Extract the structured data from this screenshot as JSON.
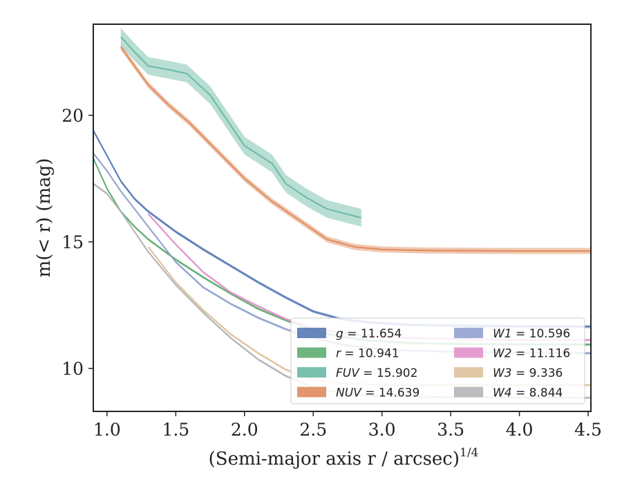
{
  "chart_data": {
    "type": "line",
    "xlabel": "(Semi-major axis r / arcsec)",
    "xlabel_superscript": "1/4",
    "ylabel": "m(< r) (mag)",
    "xlim": [
      0.9,
      4.52
    ],
    "ylim": [
      23.6,
      8.3
    ],
    "y_inverted": true,
    "grid": false,
    "legend_position": "lower-right",
    "legend_columns": 2,
    "x_ticks": [
      1.0,
      1.5,
      2.0,
      2.5,
      3.0,
      3.5,
      4.0,
      4.5
    ],
    "x_tick_labels": [
      "1.0",
      "1.5",
      "2.0",
      "2.5",
      "3.0",
      "3.5",
      "4.0",
      "4.5"
    ],
    "y_ticks": [
      10,
      15,
      20
    ],
    "y_tick_labels": [
      "10",
      "15",
      "20"
    ],
    "series": [
      {
        "name": "g",
        "legend_value": "11.654",
        "color": "#4c72b0",
        "band": 0.06,
        "x": [
          0.9,
          1.0,
          1.1,
          1.2,
          1.3,
          1.5,
          1.7,
          1.9,
          2.1,
          2.3,
          2.5,
          2.7,
          2.9,
          3.2,
          3.6,
          4.0,
          4.52
        ],
        "y": [
          19.4,
          18.4,
          17.4,
          16.7,
          16.2,
          15.4,
          14.7,
          14.05,
          13.4,
          12.8,
          12.25,
          11.95,
          11.82,
          11.72,
          11.68,
          11.66,
          11.65
        ]
      },
      {
        "name": "r",
        "legend_value": "10.941",
        "color": "#55a868",
        "band": 0.05,
        "x": [
          0.9,
          1.0,
          1.1,
          1.2,
          1.3,
          1.5,
          1.7,
          1.9,
          2.1,
          2.3,
          2.5,
          2.7,
          2.9,
          3.2,
          3.6,
          4.0,
          4.52
        ],
        "y": [
          18.3,
          17.1,
          16.2,
          15.6,
          15.1,
          14.3,
          13.6,
          12.95,
          12.35,
          11.9,
          11.5,
          11.25,
          11.1,
          11.0,
          10.96,
          10.95,
          10.94
        ]
      },
      {
        "name": "FUV",
        "legend_value": "15.902",
        "color": "#64b5a0",
        "band": 0.35,
        "x": [
          1.1,
          1.2,
          1.3,
          1.45,
          1.58,
          1.75,
          1.9,
          2.0,
          2.1,
          2.2,
          2.3,
          2.45,
          2.6,
          2.85
        ],
        "y": [
          23.1,
          22.5,
          21.95,
          21.8,
          21.65,
          20.8,
          19.6,
          18.8,
          18.45,
          18.1,
          17.3,
          16.75,
          16.3,
          15.95
        ]
      },
      {
        "name": "NUV",
        "legend_value": "14.639",
        "color": "#dd8452",
        "band": 0.12,
        "x": [
          1.1,
          1.2,
          1.3,
          1.45,
          1.6,
          1.8,
          2.0,
          2.2,
          2.4,
          2.6,
          2.8,
          3.0,
          3.3,
          3.6,
          4.0,
          4.52
        ],
        "y": [
          22.7,
          21.95,
          21.2,
          20.4,
          19.7,
          18.6,
          17.5,
          16.6,
          15.85,
          15.1,
          14.8,
          14.7,
          14.66,
          14.65,
          14.64,
          14.64
        ]
      },
      {
        "name": "W1",
        "legend_value": "10.596",
        "color": "#8c9ccc",
        "band": 0.05,
        "x": [
          0.9,
          1.0,
          1.1,
          1.2,
          1.3,
          1.5,
          1.7,
          1.9,
          2.1,
          2.3,
          2.5,
          2.7,
          2.9,
          3.2,
          3.6,
          4.0,
          4.52
        ],
        "y": [
          18.5,
          17.8,
          17.0,
          16.3,
          15.6,
          14.2,
          13.2,
          12.55,
          12.0,
          11.55,
          11.2,
          10.95,
          10.8,
          10.7,
          10.65,
          10.62,
          10.6
        ]
      },
      {
        "name": "W2",
        "legend_value": "11.116",
        "color": "#e08cc8",
        "band": 0.05,
        "x": [
          1.3,
          1.5,
          1.7,
          1.9,
          2.1,
          2.3,
          2.5,
          2.7,
          2.9,
          3.2,
          3.6,
          4.0,
          4.52
        ],
        "y": [
          16.1,
          14.9,
          13.8,
          13.0,
          12.45,
          11.95,
          11.6,
          11.4,
          11.28,
          11.2,
          11.15,
          11.12,
          11.12
        ]
      },
      {
        "name": "W3",
        "legend_value": "9.336",
        "color": "#dcc098",
        "band": 0.05,
        "x": [
          1.3,
          1.5,
          1.7,
          1.9,
          2.1,
          2.3,
          2.5,
          2.7,
          2.9,
          3.2,
          3.6,
          4.0,
          4.52
        ],
        "y": [
          14.8,
          13.4,
          12.3,
          11.35,
          10.6,
          9.95,
          9.55,
          9.4,
          9.36,
          9.34,
          9.34,
          9.34,
          9.34
        ]
      },
      {
        "name": "W4",
        "legend_value": "8.844",
        "color": "#b0b0b0",
        "band": 0.05,
        "x": [
          0.9,
          1.0,
          1.1,
          1.2,
          1.3,
          1.5,
          1.7,
          1.9,
          2.1,
          2.3,
          2.5,
          2.7,
          2.9,
          3.2,
          3.6,
          4.0,
          4.52
        ],
        "y": [
          17.3,
          16.9,
          16.2,
          15.4,
          14.6,
          13.3,
          12.2,
          11.2,
          10.35,
          9.7,
          9.25,
          9.02,
          8.92,
          8.88,
          8.86,
          8.85,
          8.84
        ]
      }
    ]
  }
}
